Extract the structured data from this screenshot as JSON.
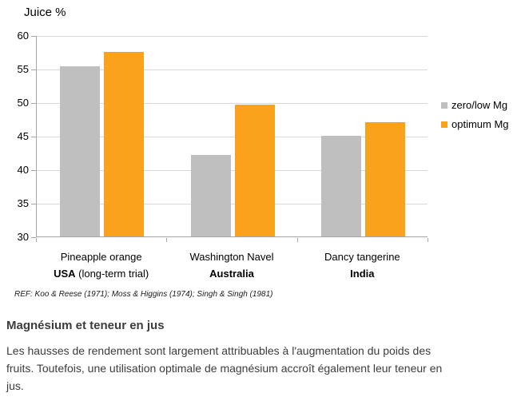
{
  "chart": {
    "title": "Juice %",
    "axis_color": "#a6a6a6",
    "gridline_color": "#d9d9d9",
    "ref_note": "REF: Koo & Reese (1971); Moss & Higgins (1974); Singh & Singh (1981)"
  },
  "chart_data": {
    "type": "bar",
    "title": "Juice %",
    "categories": [
      "Pineapple orange",
      "Washington Navel",
      "Dancy tangerine"
    ],
    "category_sublabels": [
      {
        "bold": "USA",
        "rest": " (long-term trial)"
      },
      {
        "bold": "Australia",
        "rest": ""
      },
      {
        "bold": "India",
        "rest": ""
      }
    ],
    "series": [
      {
        "name": "zero/low Mg",
        "color": "#bfbfbf",
        "values": [
          55.4,
          42.1,
          45.0
        ]
      },
      {
        "name": "optimum Mg",
        "color": "#faa21b",
        "values": [
          57.5,
          49.6,
          47.0
        ]
      }
    ],
    "xlabel": "",
    "ylabel": "Juice %",
    "ylim": [
      30,
      60
    ],
    "yticks": [
      30,
      35,
      40,
      45,
      50,
      55,
      60
    ],
    "grid": true,
    "legend_position": "right"
  },
  "footer": {
    "heading": "Magnésium et teneur en jus",
    "lines": [
      "Les hausses de rendement sont largement attribuables à l'augmentation du poids des",
      "fruits. Toutefois, une utilisation optimale de magnésium accroît également leur teneur en",
      "jus."
    ]
  }
}
